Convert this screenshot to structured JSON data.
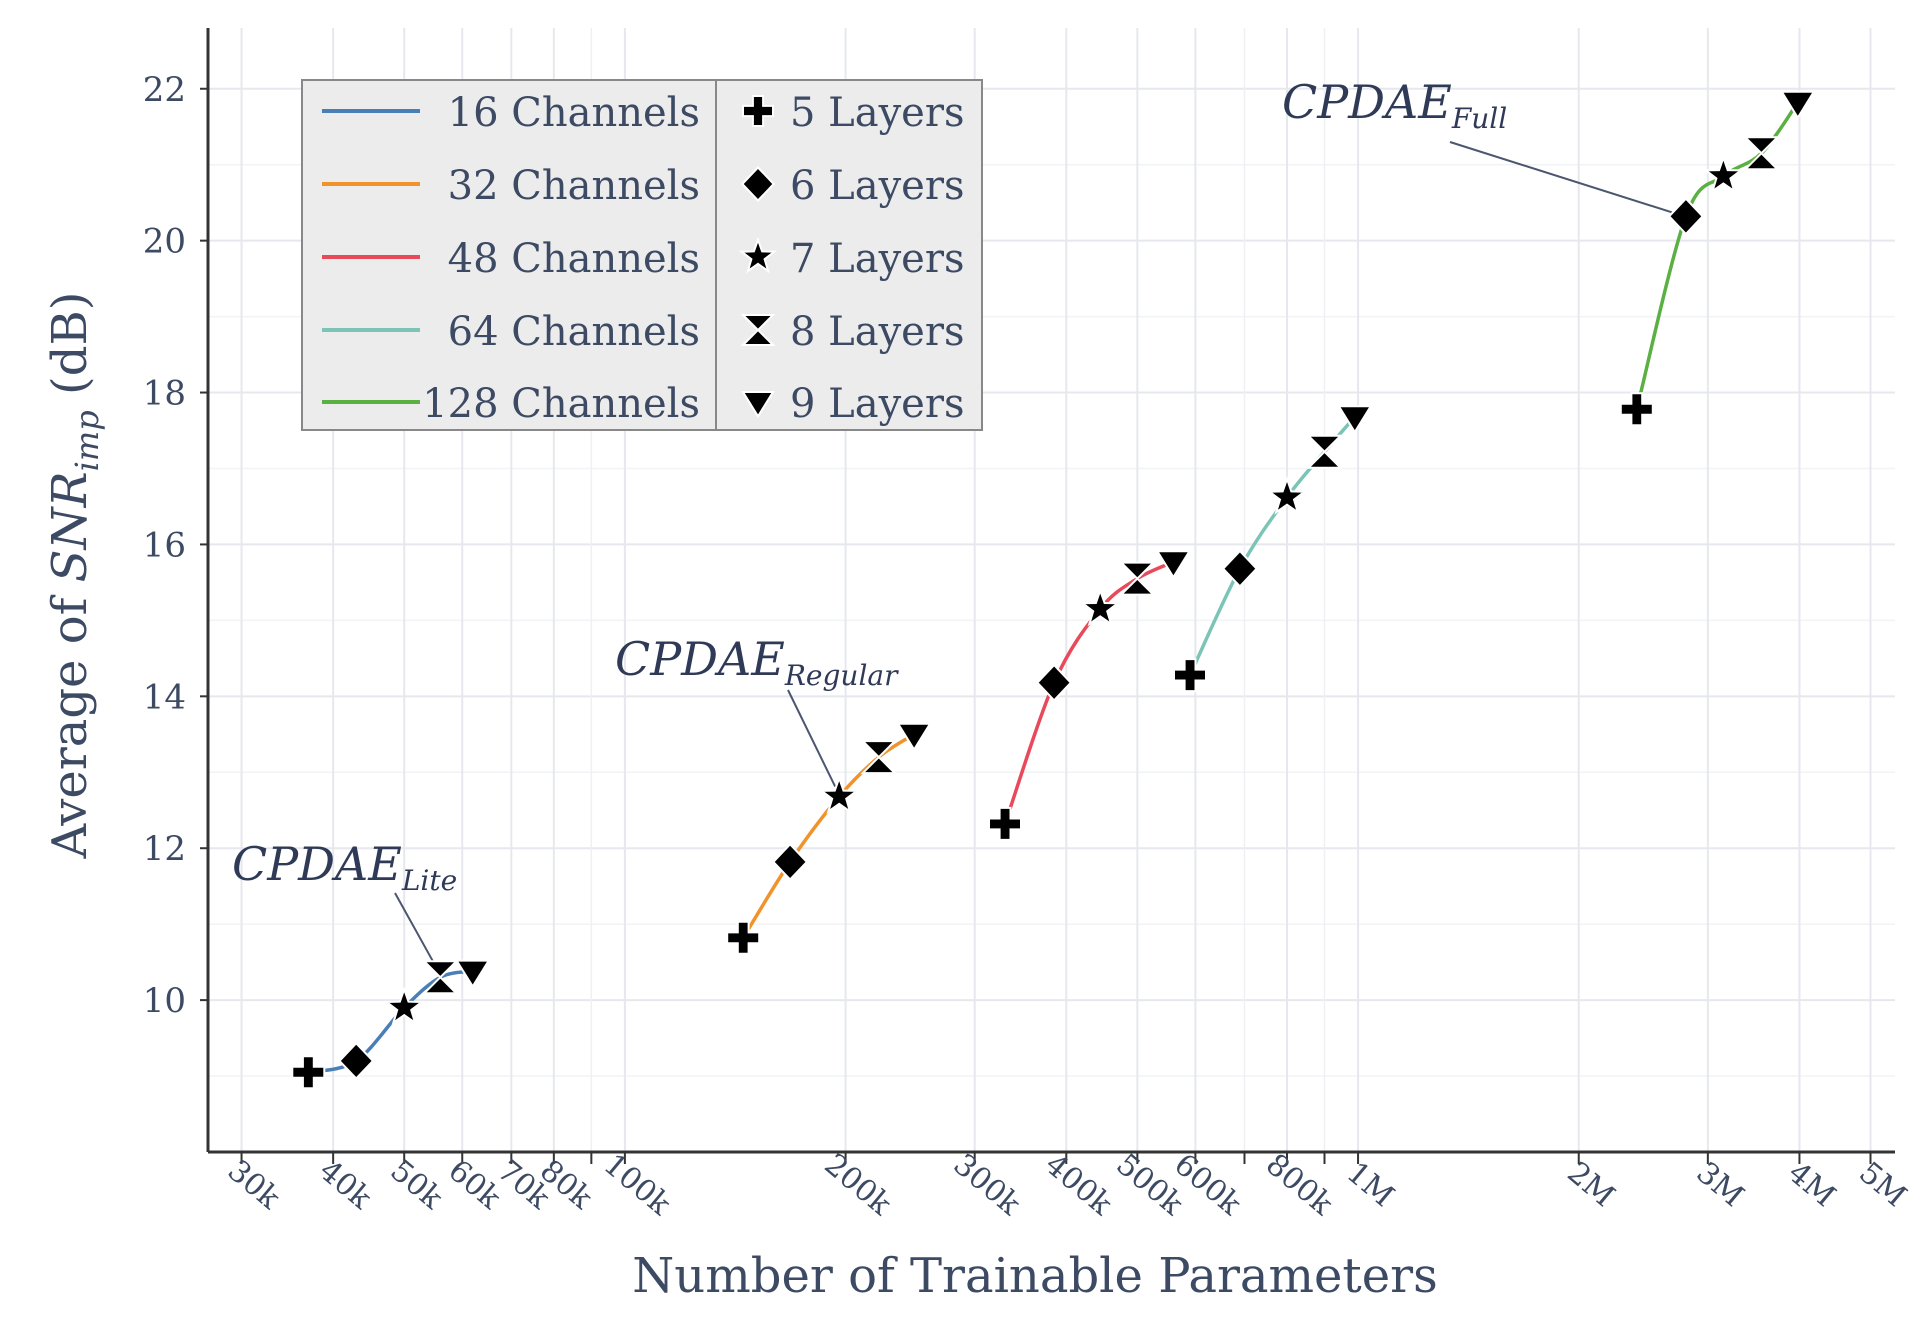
{
  "chart_data": {
    "type": "line",
    "title": "",
    "xlabel": "Number of Trainable Parameters",
    "ylabel_prefix": "Average of ",
    "ylabel_var": "SNR",
    "ylabel_sub": "imp",
    "ylabel_suffix": " (dB)",
    "x_scale": "log",
    "xlim": [
      27000,
      5400000
    ],
    "ylim": [
      8.0,
      22.8
    ],
    "grid": true,
    "y_ticks": [
      10,
      12,
      14,
      16,
      18,
      20,
      22
    ],
    "y_tick_labels": [
      "10",
      "12",
      "14",
      "16",
      "18",
      "20",
      "22"
    ],
    "x_ticks": [
      30000,
      40000,
      50000,
      60000,
      70000,
      80000,
      100000,
      200000,
      300000,
      400000,
      500000,
      600000,
      800000,
      1000000,
      2000000,
      3000000,
      4000000,
      5000000
    ],
    "x_tick_labels": [
      "30k",
      "40k",
      "50k",
      "60k",
      "70k",
      "80k",
      "100k",
      "200k",
      "300k",
      "400k",
      "500k",
      "600k",
      "800k",
      "1M",
      "2M",
      "3M",
      "4M",
      "5M"
    ],
    "x_minor_ticks": [
      90000,
      700000,
      900000
    ],
    "legend_position": "top-left",
    "series": [
      {
        "name": "16 Channels",
        "color": "#4a7fb5",
        "x": [
          37000,
          43000,
          50000,
          56000,
          62000
        ],
        "y": [
          9.05,
          9.2,
          9.9,
          10.3,
          10.38
        ]
      },
      {
        "name": "32 Channels",
        "color": "#f0932b",
        "x": [
          145000,
          168000,
          196000,
          222000,
          248000
        ],
        "y": [
          10.82,
          11.82,
          12.68,
          13.2,
          13.5
        ]
      },
      {
        "name": "48 Channels",
        "color": "#e84a5a",
        "x": [
          330000,
          385000,
          445000,
          500000,
          560000
        ],
        "y": [
          12.32,
          14.18,
          15.15,
          15.55,
          15.77
        ]
      },
      {
        "name": "64 Channels",
        "color": "#7cc4b8",
        "x": [
          590000,
          690000,
          800000,
          900000,
          990000
        ],
        "y": [
          14.28,
          15.68,
          16.62,
          17.22,
          17.68
        ]
      },
      {
        "name": "128 Channels",
        "color": "#5bb043",
        "x": [
          2400000,
          2800000,
          3150000,
          3550000,
          3980000
        ],
        "y": [
          17.78,
          20.32,
          20.85,
          21.15,
          21.82
        ]
      }
    ],
    "marker_legend": [
      {
        "label": "5 Layers",
        "marker": "plus"
      },
      {
        "label": "6 Layers",
        "marker": "diamond"
      },
      {
        "label": "7 Layers",
        "marker": "star"
      },
      {
        "label": "8 Layers",
        "marker": "hourglass"
      },
      {
        "label": "9 Layers",
        "marker": "triangle-down"
      }
    ],
    "annotations": [
      {
        "text": "CPDAE",
        "sub": "Lite",
        "target_x": 56000,
        "target_y": 10.3
      },
      {
        "text": "CPDAE",
        "sub": "Regular",
        "target_x": 196000,
        "target_y": 12.68
      },
      {
        "text": "CPDAE",
        "sub": "Full",
        "target_x": 2800000,
        "target_y": 20.32
      }
    ]
  }
}
